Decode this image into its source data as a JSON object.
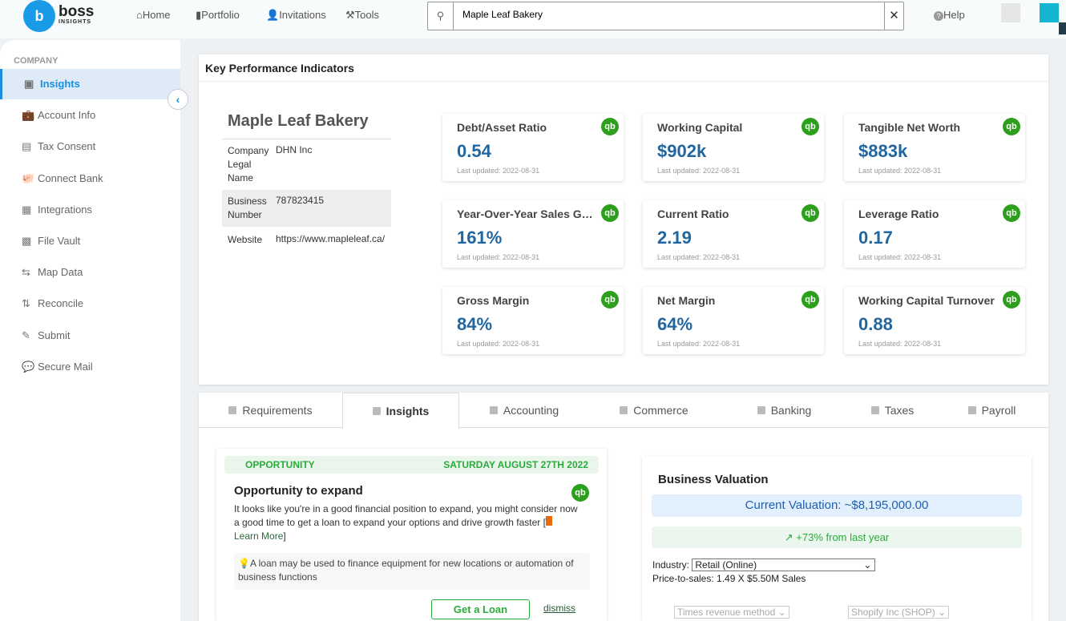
{
  "header": {
    "logo": "boss",
    "logo_sub": "INSIGHTS",
    "nav": [
      "Home",
      "Portfolio",
      "Invitations",
      "Tools"
    ],
    "search_value": "Maple Leaf Bakery",
    "help": "Help"
  },
  "sidebar": {
    "section": "COMPANY",
    "items": [
      {
        "label": "Insights",
        "icon": "insights-icon"
      },
      {
        "label": "Account Info",
        "icon": "briefcase-icon"
      },
      {
        "label": "Tax Consent",
        "icon": "tax-icon"
      },
      {
        "label": "Connect Bank",
        "icon": "piggy-bank-icon"
      },
      {
        "label": "Integrations",
        "icon": "integrations-icon"
      },
      {
        "label": "File Vault",
        "icon": "vault-icon"
      },
      {
        "label": "Map Data",
        "icon": "map-data-icon"
      },
      {
        "label": "Reconcile",
        "icon": "reconcile-icon"
      },
      {
        "label": "Submit",
        "icon": "submit-icon"
      },
      {
        "label": "Secure Mail",
        "icon": "mail-icon"
      }
    ]
  },
  "kpi": {
    "title": "Key Performance Indicators",
    "company": "Maple Leaf Bakery",
    "info": [
      {
        "k": "Company Legal Name",
        "v": "DHN Inc"
      },
      {
        "k": "Business Number",
        "v": "787823415"
      },
      {
        "k": "Website",
        "v": "https://www.mapleleaf.ca/"
      }
    ],
    "tiles": [
      {
        "t": "Debt/Asset Ratio",
        "v": "0.54",
        "u": "Last updated: 2022-08-31"
      },
      {
        "t": "Working Capital",
        "v": "$902k",
        "u": "Last updated: 2022-08-31"
      },
      {
        "t": "Tangible Net Worth",
        "v": "$883k",
        "u": "Last updated: 2022-08-31"
      },
      {
        "t": "Year-Over-Year Sales Growth",
        "v": "161%",
        "u": "Last updated: 2022-08-31"
      },
      {
        "t": "Current Ratio",
        "v": "2.19",
        "u": "Last updated: 2022-08-31"
      },
      {
        "t": "Leverage Ratio",
        "v": "0.17",
        "u": "Last updated: 2022-08-31"
      },
      {
        "t": "Gross Margin",
        "v": "84%",
        "u": "Last updated: 2022-08-31"
      },
      {
        "t": "Net Margin",
        "v": "64%",
        "u": "Last updated: 2022-08-31"
      },
      {
        "t": "Working Capital Turnover",
        "v": "0.88",
        "u": "Last updated: 2022-08-31"
      }
    ],
    "qb": "qb"
  },
  "tabs": [
    "Requirements",
    "Insights",
    "Accounting",
    "Commerce",
    "Banking",
    "Taxes",
    "Payroll"
  ],
  "opportunity": {
    "label": "OPPORTUNITY",
    "date": "SATURDAY AUGUST 27TH 2022",
    "title": "Opportunity to expand",
    "body": "It looks like you're in a good financial position to expand, you might consider now a good time to get a loan to expand your options and drive growth faster [",
    "learn": "Learn More",
    "close": "]",
    "tip": "A loan may be used to finance equipment for new locations or automation of business functions",
    "button": "Get a Loan",
    "dismiss": "dismiss"
  },
  "valuation": {
    "title": "Business Valuation",
    "current": "Current Valuation: ~$8,195,000.00",
    "growth": "+73% from last year",
    "industry_label": "Industry:",
    "industry": "Retail (Online)",
    "pts": "Price-to-sales: 1.49 X $5.50M Sales",
    "method": "Times revenue method",
    "comparable": "Shopify Inc (SHOP)"
  }
}
